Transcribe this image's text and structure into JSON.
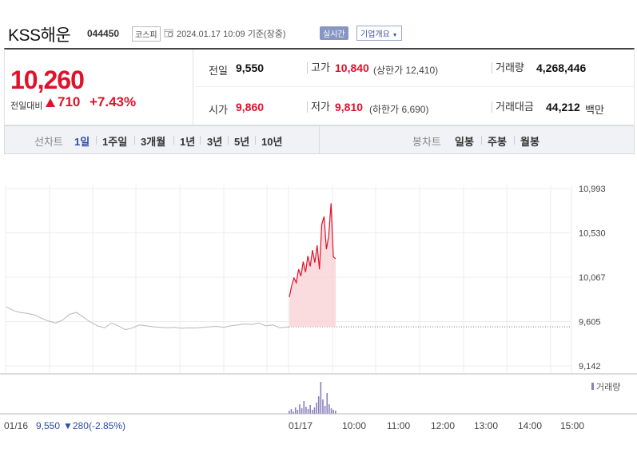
{
  "header": {
    "name": "KSS해운",
    "code": "044450",
    "market": "코스피",
    "timestamp": "2024.01.17 10:09 기준(장중)",
    "realtime": "실시간",
    "company_overview": "기업개요"
  },
  "quote": {
    "price": "10,260",
    "change_label": "전일대비",
    "change": "710",
    "change_pct": "+7.43%",
    "prev_label": "전일",
    "prev": "9,550",
    "high_label": "고가",
    "high": "10,840",
    "upper_limit": "(상한가 12,410)",
    "volume_label": "거래량",
    "volume": "4,268,446",
    "open_label": "시가",
    "open": "9,860",
    "low_label": "저가",
    "low": "9,810",
    "lower_limit": "(하한가 6,690)",
    "amount_label": "거래대금",
    "amount": "44,212",
    "amount_unit": "백만"
  },
  "range_tabs": {
    "line_label": "선차트",
    "items": [
      "1일",
      "1주일",
      "3개월",
      "1년",
      "3년",
      "5년",
      "10년"
    ],
    "candle_label": "봉차트",
    "candle_items": [
      "일봉",
      "주봉",
      "월봉"
    ]
  },
  "chart_data": {
    "type": "line",
    "y_ticks": [
      "10,993",
      "10,530",
      "10,067",
      "9,605",
      "9,142"
    ],
    "ylim": [
      9142,
      10993
    ],
    "prev_close": 9550,
    "x_ticks": [
      "01/17",
      "10:00",
      "11:00",
      "12:00",
      "13:00",
      "14:00",
      "15:00"
    ],
    "prev_day_label": "01/16",
    "prev_day_price": "9,550",
    "prev_day_change": "▼280",
    "prev_day_pct": "(-2.85%)",
    "volume_legend": "거래량",
    "colors": {
      "up": "#e0112b",
      "prev": "#b8b8b8",
      "volume": "#8a7fbf",
      "fill": "#f9d3d7"
    },
    "prev_day_series": [
      9760,
      9720,
      9700,
      9690,
      9675,
      9640,
      9610,
      9590,
      9620,
      9680,
      9700,
      9650,
      9600,
      9560,
      9540,
      9590,
      9560,
      9520,
      9540,
      9570,
      9560,
      9550,
      9545,
      9540,
      9545,
      9535,
      9540,
      9538,
      9545,
      9550,
      9555,
      9545,
      9560,
      9570,
      9580,
      9575,
      9590,
      9560,
      9570,
      9540
    ],
    "today_series": [
      9860,
      9980,
      10060,
      10010,
      10150,
      10080,
      10230,
      10120,
      10290,
      10180,
      10350,
      10220,
      10400,
      10150,
      10620,
      10700,
      10360,
      10500,
      10840,
      10280,
      10260
    ]
  }
}
